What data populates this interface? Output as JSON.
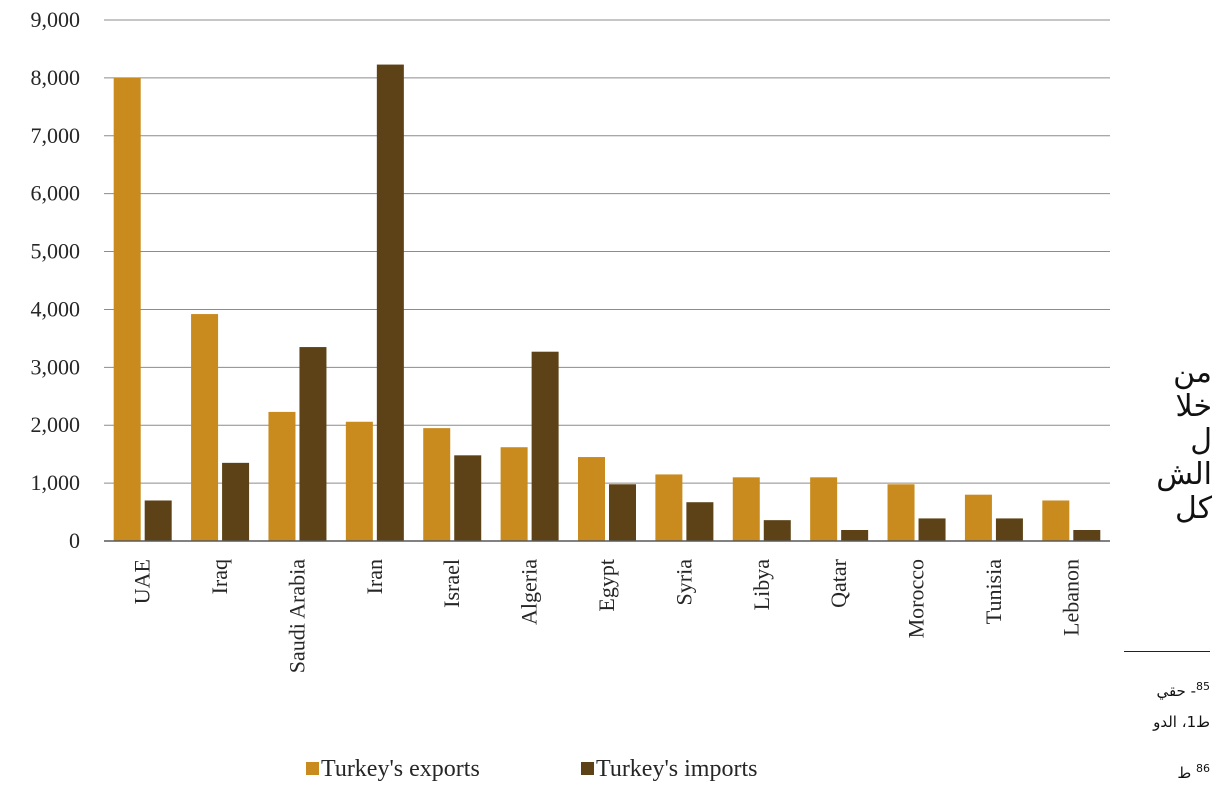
{
  "chart_data": {
    "type": "bar",
    "title": "",
    "xlabel": "",
    "ylabel": "",
    "ylim": [
      0,
      9000
    ],
    "yticks": [
      "0",
      "1,000",
      "2,000",
      "3,000",
      "4,000",
      "5,000",
      "6,000",
      "7,000",
      "8,000",
      "9,000"
    ],
    "categories": [
      "UAE",
      "Iraq",
      "Saudi Arabia",
      "Iran",
      "Israel",
      "Algeria",
      "Egypt",
      "Syria",
      "Libya",
      "Qatar",
      "Morocco",
      "Tunisia",
      "Lebanon"
    ],
    "series": [
      {
        "name": "Turkey's exports",
        "color": "#c98a1e",
        "values": [
          8000,
          3920,
          2230,
          2060,
          1950,
          1620,
          1450,
          1150,
          1100,
          1100,
          980,
          800,
          700
        ]
      },
      {
        "name": "Turkey's imports",
        "color": "#5c4216",
        "values": [
          700,
          1350,
          3350,
          8230,
          1480,
          3270,
          980,
          670,
          360,
          190,
          390,
          390,
          190
        ]
      }
    ],
    "grid": true,
    "legend": "bottom"
  },
  "side_text": [
    "من",
    "خلا",
    "ل",
    "الش",
    "كل"
  ],
  "footnotes": {
    "note1_number": "85",
    "note1_text": "- حقي",
    "note2_text": "ط1، الدو",
    "note3_number": "86",
    "note3_text": "ط"
  }
}
